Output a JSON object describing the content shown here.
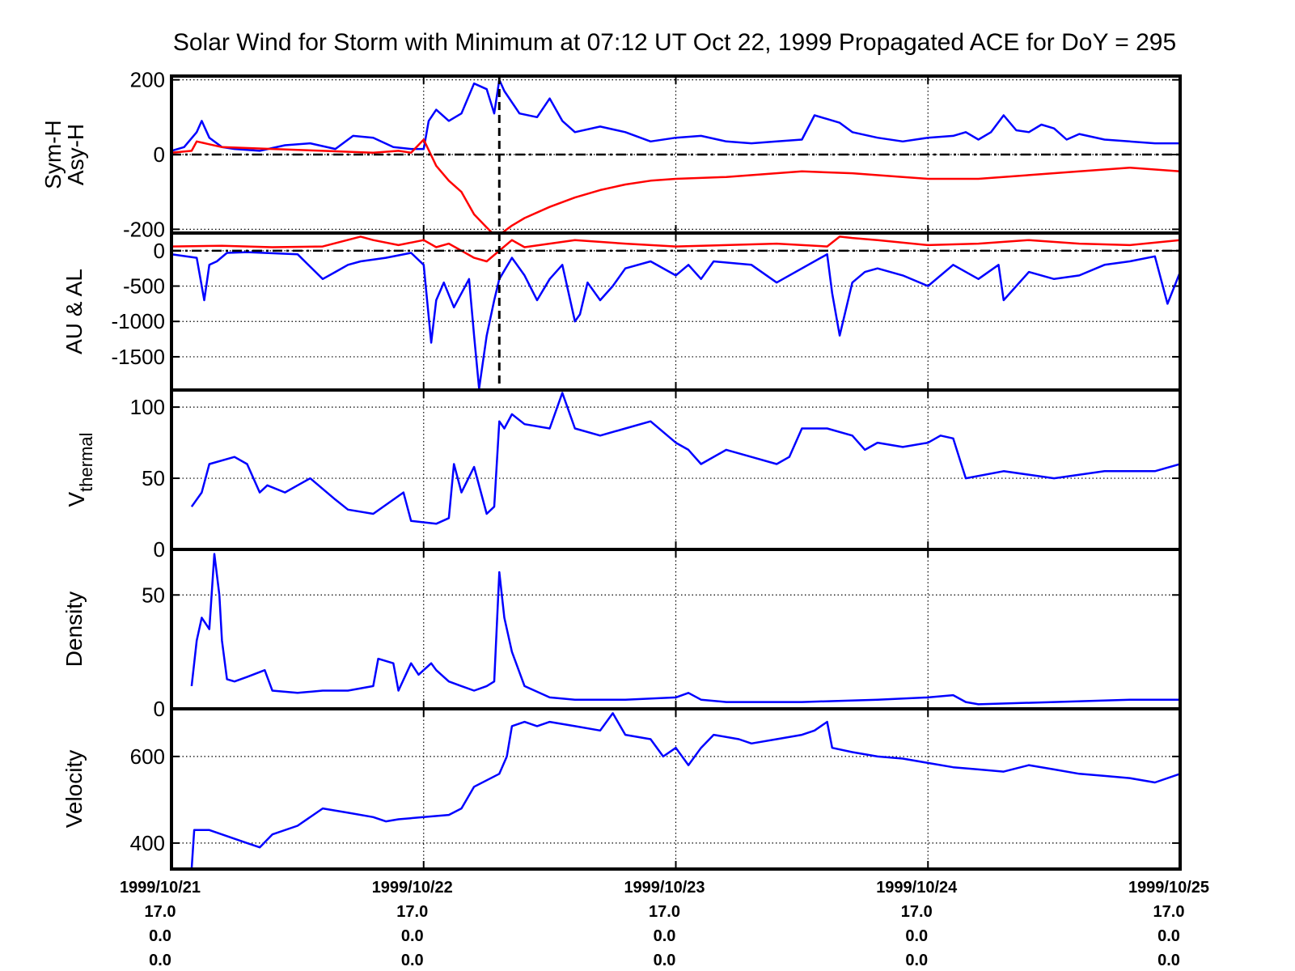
{
  "title": "Solar Wind for Storm with Minimum at 07:12 UT Oct 22, 1999  Propagated ACE for DoY = 295",
  "colors": {
    "blue": "#0000ff",
    "red": "#ff0000",
    "axis": "#000000",
    "grid": "#000000"
  },
  "x_ticks": [
    {
      "t": 0,
      "lines": [
        "1999/10/21",
        "17.0",
        "0.0",
        "0.0"
      ]
    },
    {
      "t": 1,
      "lines": [
        "1999/10/22",
        "17.0",
        "0.0",
        "0.0"
      ]
    },
    {
      "t": 2,
      "lines": [
        "1999/10/23",
        "17.0",
        "0.0",
        "0.0"
      ]
    },
    {
      "t": 3,
      "lines": [
        "1999/10/24",
        "17.0",
        "0.0",
        "0.0"
      ]
    },
    {
      "t": 4,
      "lines": [
        "1999/10/25",
        "17.0",
        "0.0",
        "0.0"
      ]
    }
  ],
  "chart_data": [
    {
      "type": "line",
      "ylabel": [
        "Sym-H",
        "Asy-H"
      ],
      "ylim": [
        -210,
        210
      ],
      "yticks": [
        {
          "value": 200,
          "label": "200"
        },
        {
          "value": 0,
          "label": "0"
        },
        {
          "value": -200,
          "label": "-200"
        }
      ],
      "x_unit": "days since 1999/10/21 00:00 UT",
      "xlim": [
        0,
        4
      ],
      "zero_line": true,
      "storm_minimum_marker_x": 1.3,
      "series": [
        {
          "color": "blue",
          "x": [
            0,
            0.05,
            0.1,
            0.12,
            0.15,
            0.2,
            0.25,
            0.35,
            0.45,
            0.55,
            0.65,
            0.72,
            0.8,
            0.88,
            0.95,
            1.0,
            1.02,
            1.05,
            1.1,
            1.15,
            1.2,
            1.25,
            1.28,
            1.3,
            1.32,
            1.38,
            1.45,
            1.5,
            1.55,
            1.6,
            1.7,
            1.8,
            1.9,
            2.0,
            2.1,
            2.2,
            2.3,
            2.4,
            2.5,
            2.55,
            2.6,
            2.65,
            2.7,
            2.8,
            2.9,
            3.0,
            3.1,
            3.15,
            3.2,
            3.25,
            3.3,
            3.35,
            3.4,
            3.45,
            3.5,
            3.55,
            3.6,
            3.7,
            3.8,
            3.9,
            4.0
          ],
          "y": [
            10,
            20,
            60,
            90,
            45,
            20,
            15,
            10,
            25,
            30,
            15,
            50,
            45,
            20,
            15,
            15,
            90,
            120,
            90,
            110,
            190,
            175,
            110,
            200,
            170,
            110,
            100,
            150,
            90,
            60,
            75,
            60,
            35,
            45,
            50,
            35,
            30,
            35,
            40,
            105,
            95,
            85,
            60,
            45,
            35,
            45,
            50,
            60,
            40,
            60,
            105,
            65,
            60,
            80,
            70,
            40,
            55,
            40,
            35,
            30,
            30
          ]
        },
        {
          "color": "red",
          "x": [
            0,
            0.08,
            0.1,
            0.2,
            0.4,
            0.6,
            0.8,
            0.9,
            0.95,
            1.0,
            1.05,
            1.1,
            1.15,
            1.2,
            1.25,
            1.28,
            1.3,
            1.35,
            1.4,
            1.5,
            1.6,
            1.7,
            1.8,
            1.9,
            2.0,
            2.2,
            2.5,
            2.7,
            2.9,
            3.0,
            3.2,
            3.4,
            3.6,
            3.8,
            4.0
          ],
          "y": [
            5,
            10,
            35,
            20,
            15,
            10,
            5,
            10,
            5,
            40,
            -30,
            -70,
            -100,
            -160,
            -195,
            -215,
            -215,
            -190,
            -170,
            -140,
            -115,
            -95,
            -80,
            -70,
            -65,
            -60,
            -45,
            -50,
            -60,
            -65,
            -65,
            -55,
            -45,
            -35,
            -45
          ]
        }
      ]
    },
    {
      "type": "line",
      "ylabel": [
        "AU & AL"
      ],
      "ylim": [
        -1970,
        250
      ],
      "yticks": [
        {
          "value": 0,
          "label": "0"
        },
        {
          "value": -500,
          "label": "-500"
        },
        {
          "value": -1000,
          "label": "-1000"
        },
        {
          "value": -1500,
          "label": "-1500"
        }
      ],
      "x_unit": "days since 1999/10/21 00:00 UT",
      "xlim": [
        0,
        4
      ],
      "zero_line": true,
      "storm_minimum_marker_x": 1.3,
      "series": [
        {
          "color": "blue",
          "x": [
            0,
            0.1,
            0.13,
            0.15,
            0.18,
            0.22,
            0.3,
            0.5,
            0.6,
            0.65,
            0.7,
            0.75,
            0.85,
            0.95,
            1.0,
            1.03,
            1.05,
            1.08,
            1.12,
            1.18,
            1.2,
            1.22,
            1.25,
            1.28,
            1.3,
            1.35,
            1.4,
            1.45,
            1.5,
            1.55,
            1.6,
            1.62,
            1.65,
            1.7,
            1.75,
            1.8,
            1.9,
            2.0,
            2.05,
            2.1,
            2.15,
            2.3,
            2.4,
            2.6,
            2.62,
            2.65,
            2.7,
            2.75,
            2.8,
            2.9,
            3.0,
            3.1,
            3.2,
            3.28,
            3.3,
            3.4,
            3.5,
            3.6,
            3.7,
            3.8,
            3.9,
            3.95,
            4.0
          ],
          "y": [
            -50,
            -100,
            -700,
            -200,
            -150,
            -30,
            -20,
            -50,
            -400,
            -300,
            -200,
            -150,
            -100,
            -30,
            -200,
            -1300,
            -700,
            -450,
            -800,
            -400,
            -1200,
            -1950,
            -1200,
            -700,
            -400,
            -100,
            -350,
            -700,
            -400,
            -200,
            -1000,
            -900,
            -450,
            -700,
            -500,
            -250,
            -150,
            -350,
            -200,
            -400,
            -150,
            -200,
            -450,
            -50,
            -600,
            -1200,
            -450,
            -300,
            -250,
            -350,
            -500,
            -200,
            -400,
            -200,
            -700,
            -300,
            -400,
            -350,
            -200,
            -150,
            -80,
            -750,
            -300
          ]
        },
        {
          "color": "red",
          "x": [
            0,
            0.2,
            0.4,
            0.6,
            0.75,
            0.8,
            0.9,
            1.0,
            1.05,
            1.1,
            1.15,
            1.2,
            1.25,
            1.3,
            1.35,
            1.4,
            1.5,
            1.6,
            1.8,
            2.0,
            2.2,
            2.4,
            2.6,
            2.65,
            2.7,
            2.8,
            3.0,
            3.2,
            3.4,
            3.6,
            3.8,
            4.0
          ],
          "y": [
            60,
            70,
            50,
            60,
            200,
            150,
            80,
            150,
            50,
            100,
            0,
            -100,
            -150,
            0,
            150,
            50,
            100,
            150,
            100,
            60,
            80,
            100,
            60,
            200,
            180,
            150,
            80,
            100,
            150,
            100,
            80,
            150
          ]
        }
      ]
    },
    {
      "type": "line",
      "ylabel": [
        "V",
        "thermal"
      ],
      "ylim": [
        0,
        112
      ],
      "yticks": [
        {
          "value": 100,
          "label": "100"
        },
        {
          "value": 50,
          "label": "50"
        },
        {
          "value": 0,
          "label": "0"
        }
      ],
      "x_unit": "days since 1999/10/21 00:00 UT",
      "xlim": [
        0,
        4
      ],
      "series": [
        {
          "color": "blue",
          "x": [
            0.08,
            0.12,
            0.15,
            0.25,
            0.3,
            0.35,
            0.38,
            0.45,
            0.5,
            0.55,
            0.65,
            0.7,
            0.8,
            0.92,
            0.95,
            1.05,
            1.1,
            1.12,
            1.15,
            1.2,
            1.25,
            1.28,
            1.3,
            1.32,
            1.35,
            1.4,
            1.5,
            1.55,
            1.6,
            1.7,
            1.8,
            1.9,
            2.0,
            2.05,
            2.1,
            2.2,
            2.3,
            2.4,
            2.45,
            2.5,
            2.6,
            2.7,
            2.75,
            2.8,
            2.9,
            3.0,
            3.05,
            3.1,
            3.15,
            3.3,
            3.5,
            3.7,
            3.9,
            4.0
          ],
          "y": [
            30,
            40,
            60,
            65,
            60,
            40,
            45,
            40,
            45,
            50,
            35,
            28,
            25,
            40,
            20,
            18,
            22,
            60,
            40,
            58,
            25,
            30,
            90,
            85,
            95,
            88,
            85,
            110,
            85,
            80,
            85,
            90,
            75,
            70,
            60,
            70,
            65,
            60,
            65,
            85,
            85,
            80,
            70,
            75,
            72,
            75,
            80,
            78,
            50,
            55,
            50,
            55,
            55,
            60
          ]
        }
      ]
    },
    {
      "type": "line",
      "ylabel": [
        "Density"
      ],
      "ylim": [
        0,
        70
      ],
      "yticks": [
        {
          "value": 50,
          "label": "50"
        },
        {
          "value": 0,
          "label": "0"
        }
      ],
      "x_unit": "days since 1999/10/21 00:00 UT",
      "xlim": [
        0,
        4
      ],
      "series": [
        {
          "color": "blue",
          "x": [
            0.08,
            0.1,
            0.12,
            0.15,
            0.17,
            0.19,
            0.2,
            0.22,
            0.25,
            0.3,
            0.37,
            0.4,
            0.5,
            0.6,
            0.7,
            0.8,
            0.82,
            0.88,
            0.9,
            0.95,
            0.98,
            1.03,
            1.05,
            1.1,
            1.15,
            1.2,
            1.25,
            1.28,
            1.3,
            1.32,
            1.35,
            1.4,
            1.5,
            1.6,
            1.8,
            2.0,
            2.05,
            2.1,
            2.2,
            2.5,
            2.8,
            3.0,
            3.1,
            3.15,
            3.2,
            3.5,
            3.8,
            4.0
          ],
          "y": [
            10,
            30,
            40,
            35,
            68,
            50,
            30,
            13,
            12,
            14,
            17,
            8,
            7,
            8,
            8,
            10,
            22,
            20,
            8,
            20,
            15,
            20,
            17,
            12,
            10,
            8,
            10,
            12,
            60,
            40,
            25,
            10,
            5,
            4,
            4,
            5,
            7,
            4,
            3,
            3,
            4,
            5,
            6,
            3,
            2,
            3,
            4,
            4
          ]
        }
      ]
    },
    {
      "type": "line",
      "ylabel": [
        "Velocity"
      ],
      "ylim": [
        340,
        710
      ],
      "yticks": [
        {
          "value": 600,
          "label": "600"
        },
        {
          "value": 400,
          "label": "400"
        }
      ],
      "x_unit": "days since 1999/10/21 00:00 UT",
      "xlim": [
        0,
        4
      ],
      "series": [
        {
          "color": "blue",
          "x": [
            0.08,
            0.09,
            0.15,
            0.2,
            0.3,
            0.35,
            0.4,
            0.5,
            0.6,
            0.7,
            0.8,
            0.85,
            0.9,
            1.0,
            1.1,
            1.15,
            1.2,
            1.25,
            1.3,
            1.33,
            1.35,
            1.4,
            1.45,
            1.5,
            1.6,
            1.7,
            1.75,
            1.8,
            1.9,
            1.95,
            2.0,
            2.05,
            2.1,
            2.15,
            2.25,
            2.3,
            2.4,
            2.5,
            2.55,
            2.6,
            2.62,
            2.7,
            2.8,
            2.9,
            3.0,
            3.1,
            3.2,
            3.3,
            3.4,
            3.5,
            3.6,
            3.7,
            3.8,
            3.9,
            4.0
          ],
          "y": [
            340,
            430,
            430,
            420,
            400,
            390,
            420,
            440,
            480,
            470,
            460,
            450,
            455,
            460,
            465,
            480,
            530,
            545,
            560,
            600,
            670,
            680,
            670,
            680,
            670,
            660,
            700,
            650,
            640,
            600,
            620,
            580,
            620,
            650,
            640,
            630,
            640,
            650,
            660,
            680,
            620,
            610,
            600,
            595,
            585,
            575,
            570,
            565,
            580,
            570,
            560,
            555,
            550,
            540,
            560
          ]
        }
      ]
    }
  ]
}
